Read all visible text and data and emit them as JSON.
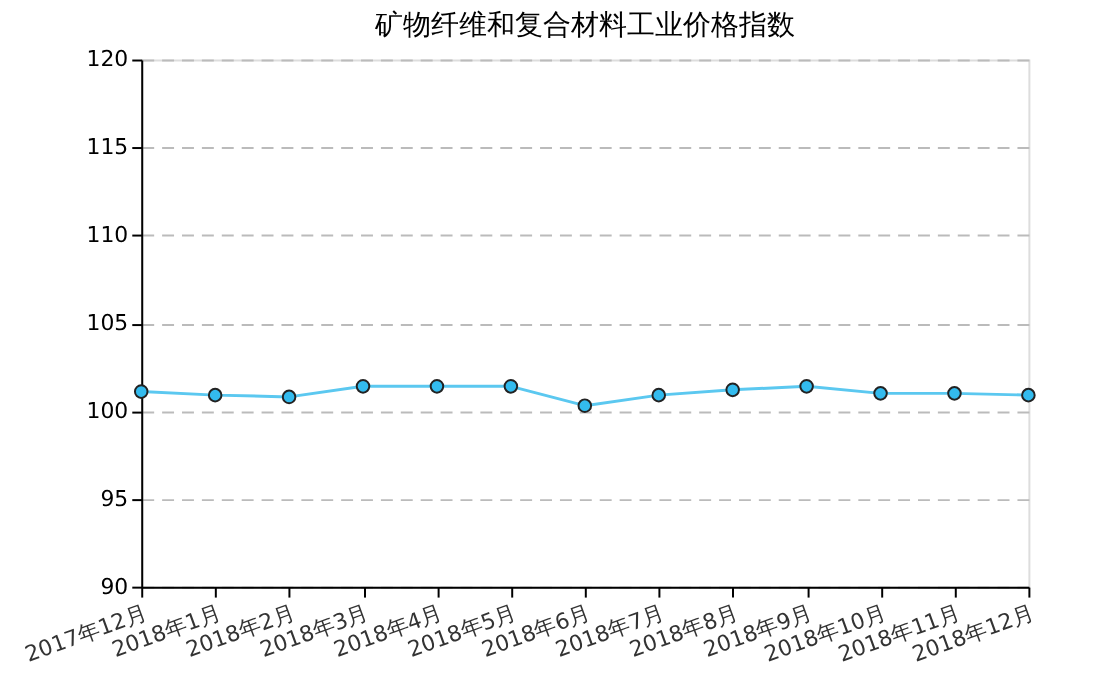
{
  "chart_data": {
    "type": "line",
    "title": "矿物纤维和复合材料工业价格指数",
    "categories": [
      "2017年12月",
      "2018年1月",
      "2018年2月",
      "2018年3月",
      "2018年4月",
      "2018年5月",
      "2018年6月",
      "2018年7月",
      "2018年8月",
      "2018年9月",
      "2018年10月",
      "2018年11月",
      "2018年12月"
    ],
    "series": [
      {
        "color": "#5bc8f0",
        "values": [
          101.1,
          100.9,
          100.8,
          101.4,
          101.4,
          101.4,
          100.3,
          100.9,
          101.2,
          101.4,
          101.0,
          101.0,
          100.9
        ]
      }
    ],
    "ylim": [
      90,
      120
    ],
    "yticks": [
      90,
      95,
      100,
      105,
      110,
      115,
      120
    ],
    "grid": "y",
    "marker": "circle",
    "line_style": "solid"
  }
}
